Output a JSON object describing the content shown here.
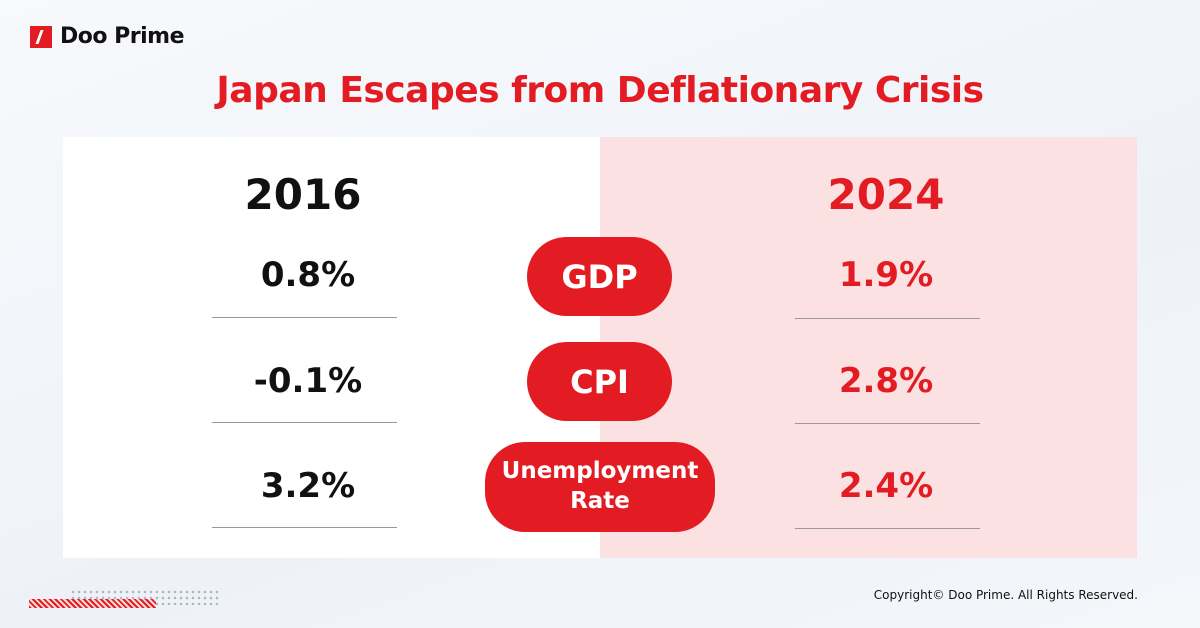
{
  "brand": {
    "name": "Doo Prime",
    "accent": "#e31b23"
  },
  "title": "Japan Escapes from Deflationary Crisis",
  "columns": {
    "left_year": "2016",
    "right_year": "2024"
  },
  "rows": [
    {
      "label": "GDP",
      "v2016": "0.8%",
      "v2024": "1.9%"
    },
    {
      "label": "CPI",
      "v2016": "-0.1%",
      "v2024": "2.8%"
    },
    {
      "label": "Unemployment Rate",
      "v2016": "3.2%",
      "v2024": "2.4%"
    }
  ],
  "footer": {
    "copyright": "Copyright© Doo Prime. All Rights Reserved."
  }
}
